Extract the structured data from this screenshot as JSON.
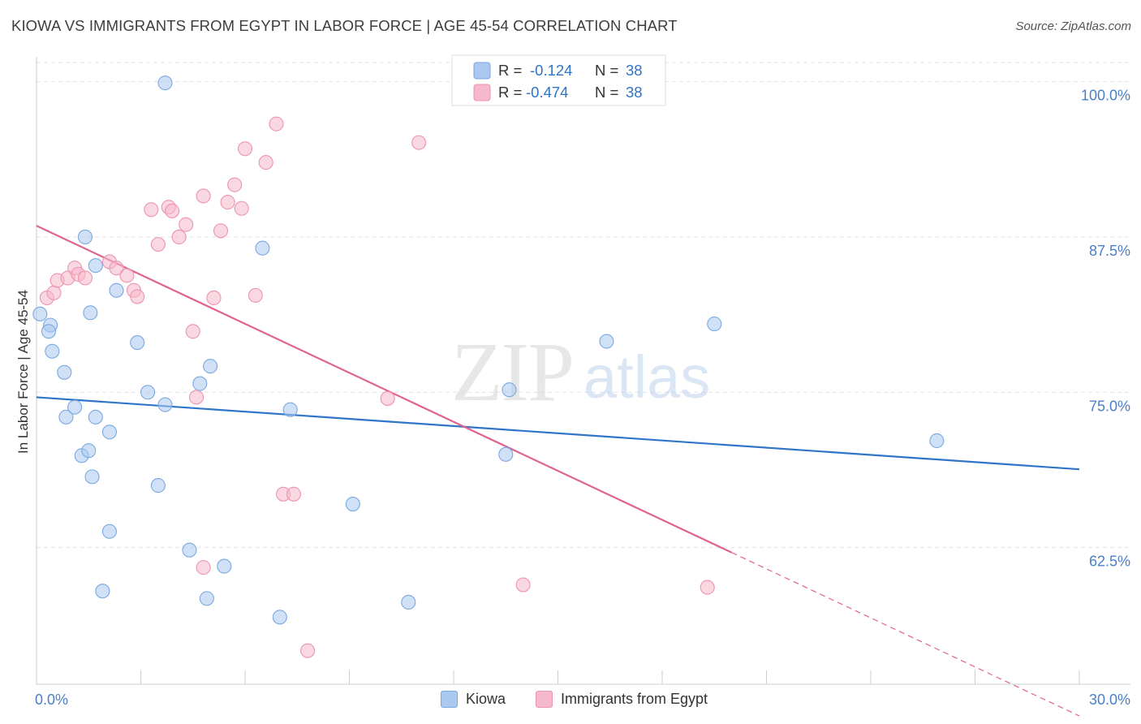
{
  "header": {
    "title": "KIOWA VS IMMIGRANTS FROM EGYPT IN LABOR FORCE | AGE 45-54 CORRELATION CHART",
    "source": "Source: ZipAtlas.com"
  },
  "watermark": {
    "zip": "ZIP",
    "atlas": "atlas"
  },
  "colors": {
    "blue_fill": "#aac8f0",
    "blue_stroke": "#7aa8e0",
    "blue_line": "#2f74c8",
    "pink_fill": "#f6b8cb",
    "pink_stroke": "#ec94b0",
    "pink_line": "#e0628f",
    "axis_label": "#4a7fc6",
    "grid": "#e3e3e3"
  },
  "chart_data": {
    "type": "scatter",
    "title": "KIOWA VS IMMIGRANTS FROM EGYPT IN LABOR FORCE | AGE 45-54 CORRELATION CHART",
    "xlabel": "",
    "ylabel": "In Labor Force | Age 45-54",
    "xlim": [
      0,
      30
    ],
    "ylim": [
      51.5,
      102
    ],
    "x_tick_labels": [
      "0.0%",
      "30.0%"
    ],
    "y_ticks": [
      62.5,
      75.0,
      87.5,
      100.0
    ],
    "y_tick_labels": [
      "62.5%",
      "75.0%",
      "87.5%",
      "100.0%"
    ],
    "grid": "horizontal dashed",
    "legend": [
      {
        "r_label": "R =",
        "r_value": "-0.124",
        "n_label": "N =",
        "n_value": "38"
      },
      {
        "r_label": "R =",
        "r_value": "-0.474",
        "n_label": "N =",
        "n_value": "38"
      }
    ],
    "series": [
      {
        "name": "Kiowa",
        "color": "#aac8f0",
        "trend": {
          "x0": 0,
          "y0": 74.6,
          "x1": 30,
          "y1": 68.8
        },
        "points": [
          [
            0.1,
            81.3
          ],
          [
            0.4,
            80.4
          ],
          [
            0.35,
            79.9
          ],
          [
            0.45,
            78.3
          ],
          [
            0.8,
            76.6
          ],
          [
            0.85,
            73.0
          ],
          [
            1.1,
            73.8
          ],
          [
            1.3,
            69.9
          ],
          [
            1.5,
            70.3
          ],
          [
            1.4,
            87.5
          ],
          [
            1.7,
            73.0
          ],
          [
            1.6,
            68.2
          ],
          [
            1.55,
            81.4
          ],
          [
            1.7,
            85.2
          ],
          [
            2.1,
            71.8
          ],
          [
            2.3,
            83.2
          ],
          [
            2.1,
            63.8
          ],
          [
            1.9,
            59.0
          ],
          [
            2.9,
            79.0
          ],
          [
            3.2,
            75.0
          ],
          [
            3.7,
            74.0
          ],
          [
            3.5,
            67.5
          ],
          [
            3.7,
            99.9
          ],
          [
            4.4,
            62.3
          ],
          [
            4.7,
            75.7
          ],
          [
            5.0,
            77.1
          ],
          [
            4.9,
            58.4
          ],
          [
            5.4,
            61.0
          ],
          [
            6.5,
            86.6
          ],
          [
            7.0,
            56.9
          ],
          [
            7.3,
            73.6
          ],
          [
            9.1,
            66.0
          ],
          [
            10.7,
            58.1
          ],
          [
            13.5,
            70.0
          ],
          [
            13.6,
            75.2
          ],
          [
            16.4,
            79.1
          ],
          [
            19.5,
            80.5
          ],
          [
            25.9,
            71.1
          ]
        ]
      },
      {
        "name": "Immigrants from Egypt",
        "color": "#f6b8cb",
        "trend": {
          "x0": 0,
          "y0": 88.4,
          "x1": 20,
          "y1": 62.1,
          "dash_to_x": 30
        },
        "points": [
          [
            0.3,
            82.6
          ],
          [
            0.5,
            83.0
          ],
          [
            0.6,
            84.0
          ],
          [
            0.9,
            84.2
          ],
          [
            1.1,
            85.0
          ],
          [
            1.2,
            84.5
          ],
          [
            1.4,
            84.2
          ],
          [
            2.1,
            85.5
          ],
          [
            2.3,
            85.0
          ],
          [
            2.6,
            84.4
          ],
          [
            2.8,
            83.2
          ],
          [
            2.9,
            82.7
          ],
          [
            3.3,
            89.7
          ],
          [
            3.5,
            86.9
          ],
          [
            3.8,
            89.9
          ],
          [
            3.9,
            89.6
          ],
          [
            4.1,
            87.5
          ],
          [
            4.3,
            88.5
          ],
          [
            4.5,
            79.9
          ],
          [
            4.6,
            74.6
          ],
          [
            4.8,
            90.8
          ],
          [
            4.8,
            60.9
          ],
          [
            5.1,
            82.6
          ],
          [
            5.3,
            88.0
          ],
          [
            5.5,
            90.3
          ],
          [
            5.7,
            91.7
          ],
          [
            5.9,
            89.8
          ],
          [
            6.0,
            94.6
          ],
          [
            6.3,
            82.8
          ],
          [
            6.6,
            93.5
          ],
          [
            6.9,
            96.6
          ],
          [
            7.1,
            66.8
          ],
          [
            7.4,
            66.8
          ],
          [
            7.8,
            54.2
          ],
          [
            10.1,
            74.5
          ],
          [
            11.0,
            95.1
          ],
          [
            14.0,
            59.5
          ],
          [
            19.3,
            59.3
          ]
        ]
      }
    ]
  },
  "bottom_legend": [
    {
      "label": "Kiowa"
    },
    {
      "label": "Immigrants from Egypt"
    }
  ]
}
